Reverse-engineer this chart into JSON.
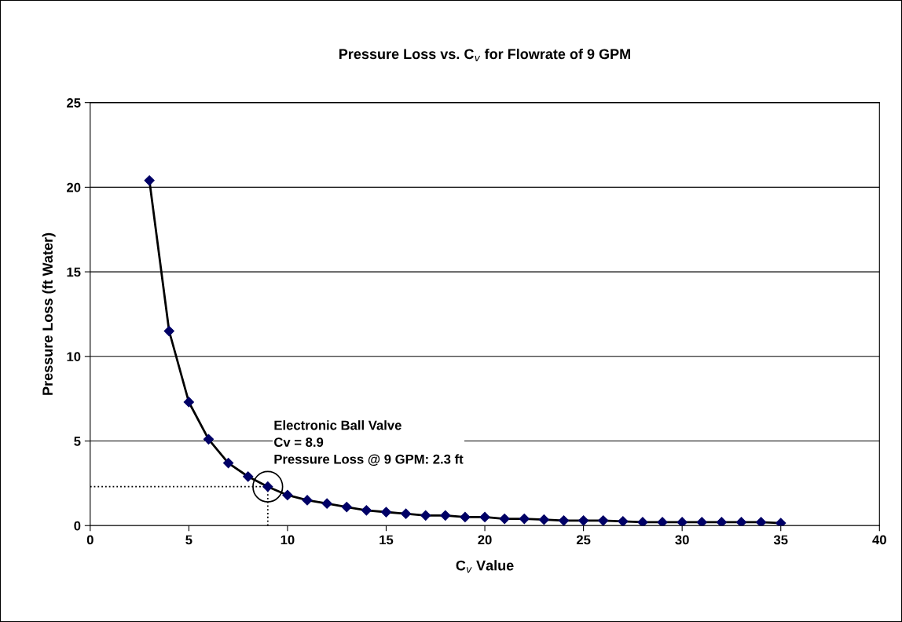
{
  "chart_data": {
    "type": "line",
    "title": "Pressure Loss vs. C$_{v}$ for Flowrate of 9 GPM",
    "xlabel": "C$_{v}$ Value",
    "ylabel": "Pressure Loss (ft Water)",
    "x": [
      3,
      4,
      5,
      6,
      7,
      8,
      9,
      10,
      11,
      12,
      13,
      14,
      15,
      16,
      17,
      18,
      19,
      20,
      21,
      22,
      23,
      24,
      25,
      26,
      27,
      28,
      29,
      30,
      31,
      32,
      33,
      34,
      35
    ],
    "series": [
      {
        "color": "#000066",
        "values": [
          20.4,
          11.5,
          7.3,
          5.1,
          3.7,
          2.9,
          2.3,
          1.8,
          1.5,
          1.3,
          1.1,
          0.9,
          0.8,
          0.7,
          0.6,
          0.6,
          0.5,
          0.5,
          0.4,
          0.4,
          0.35,
          0.3,
          0.3,
          0.3,
          0.25,
          0.2,
          0.2,
          0.2,
          0.2,
          0.2,
          0.2,
          0.2,
          0.15
        ]
      }
    ],
    "annotations": [
      {
        "text": "Electronic Ball Valve\nCv = 8.9\nPressure Loss @ 9 GPM: 2.3 ft",
        "x": 9,
        "y": 2.3
      }
    ],
    "xlim": [
      0,
      40
    ],
    "xticks": [
      0,
      5,
      10,
      15,
      20,
      25,
      30,
      35,
      40
    ],
    "ylim": [
      0,
      25
    ],
    "yticks": [
      0,
      5,
      10,
      15,
      20,
      25
    ],
    "grid": "y",
    "marker": "diamond",
    "line_style": "solid"
  }
}
